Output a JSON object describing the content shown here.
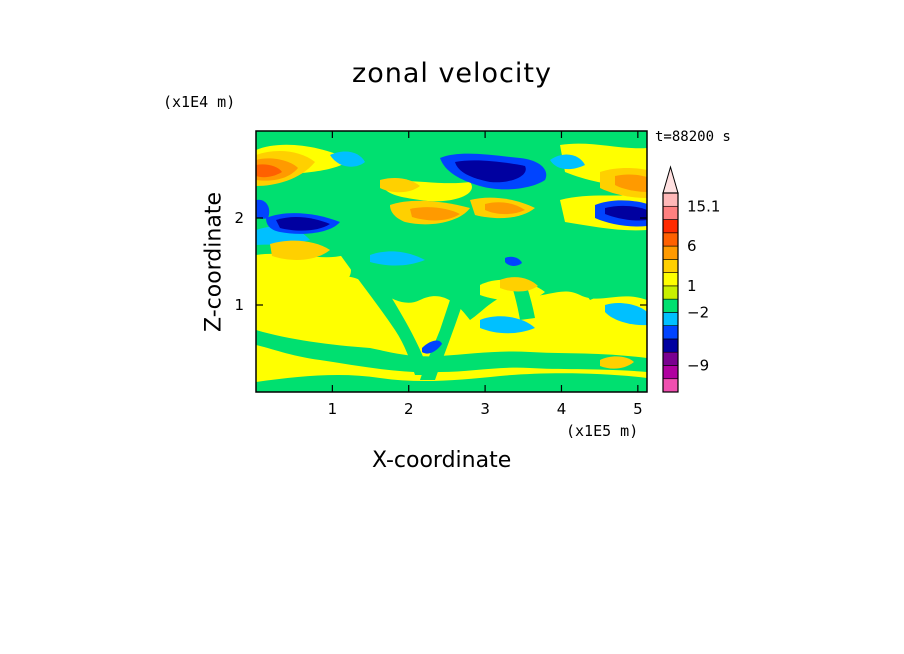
{
  "chart_data": {
    "type": "heatmap",
    "title": "zonal velocity",
    "xlabel": "X-coordinate",
    "ylabel": "Z-coordinate",
    "x_unit": "(x1E5 m)",
    "z_unit": "(x1E4 m)",
    "time_label": "t=88200 s",
    "xlim": [
      0,
      5.12
    ],
    "ylim": [
      0,
      3.0
    ],
    "xticks": [
      "1",
      "2",
      "3",
      "4",
      "5"
    ],
    "yticks": [
      "1",
      "2"
    ],
    "colorbar": {
      "labels": [
        "15.1",
        "6",
        "1",
        "−2",
        "−9"
      ],
      "colors": [
        "#f04fb0",
        "#b000a0",
        "#7a0090",
        "#0000a0",
        "#0044ff",
        "#00c0ff",
        "#00e070",
        "#c8f000",
        "#ffff00",
        "#ffd000",
        "#ff9a00",
        "#ff6000",
        "#ff2a00",
        "#ff8080",
        "#ffb8b8"
      ]
    },
    "regions": [
      {
        "value": 1,
        "label": "background yellow"
      },
      {
        "value": 0,
        "label": "green band"
      },
      {
        "value": -4,
        "label": "blue jet"
      },
      {
        "value": 5,
        "label": "orange/red jet"
      }
    ]
  }
}
